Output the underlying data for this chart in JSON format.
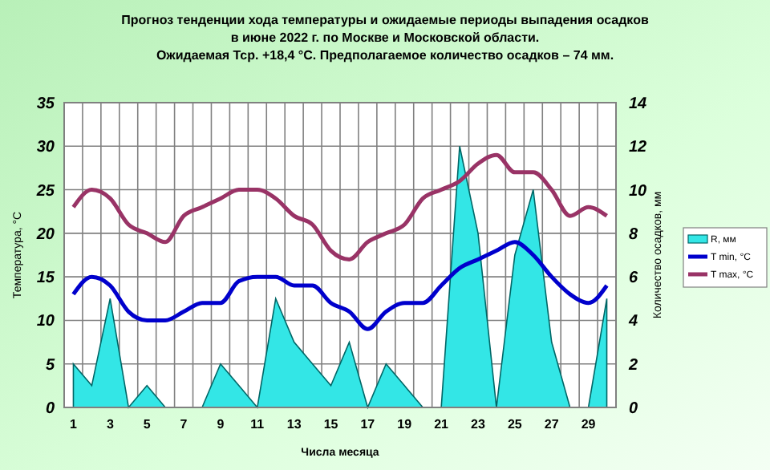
{
  "chart_data": {
    "type": "line",
    "title": "Прогноз тенденции хода температуры и ожидаемые периоды выпадения осадков",
    "subtitle": "в июне 2022 г. по Москве и Московской области.\nОжидаемая Тср. +18,4 °С. Предполагаемое количество осадков – 74 мм.",
    "xlabel": "Числа месяца",
    "ylabel": "Температура, °С",
    "y2label": "Количество осадков, мм",
    "x": [
      1,
      2,
      3,
      4,
      5,
      6,
      7,
      8,
      9,
      10,
      11,
      12,
      13,
      14,
      15,
      16,
      17,
      18,
      19,
      20,
      21,
      22,
      23,
      24,
      25,
      26,
      27,
      28,
      29,
      30
    ],
    "xlim": [
      0.5,
      30.5
    ],
    "xticks": [
      1,
      {
        "value": 1.5,
        "label": null
      },
      {
        "value": 2.5,
        "label": null
      },
      3,
      {
        "value": 3.5,
        "label": null
      },
      {
        "value": 4.5,
        "label": null
      },
      5,
      {
        "value": 5.5,
        "label": null
      },
      {
        "value": 6.5,
        "label": null
      },
      7,
      {
        "value": 7.5,
        "label": null
      },
      {
        "value": 8.5,
        "label": null
      },
      9,
      {
        "value": 9.5,
        "label": null
      },
      {
        "value": 10.5,
        "label": null
      },
      11,
      {
        "value": 11.5,
        "label": null
      },
      {
        "value": 12.5,
        "label": null
      },
      13,
      {
        "value": 13.5,
        "label": null
      },
      {
        "value": 14.5,
        "label": null
      },
      15,
      {
        "value": 15.5,
        "label": null
      },
      {
        "value": 16.5,
        "label": null
      },
      17,
      {
        "value": 17.5,
        "label": null
      },
      {
        "value": 18.5,
        "label": null
      },
      19,
      {
        "value": 19.5,
        "label": null
      },
      {
        "value": 20.5,
        "label": null
      },
      21,
      {
        "value": 21.5,
        "label": null
      },
      {
        "value": 22.5,
        "label": null
      },
      23,
      {
        "value": 23.5,
        "label": null
      },
      {
        "value": 24.5,
        "label": null
      },
      25,
      {
        "value": 25.5,
        "label": null
      },
      {
        "value": 26.5,
        "label": null
      },
      27,
      {
        "value": 27.5,
        "label": null
      },
      {
        "value": 28.5,
        "label": null
      },
      29,
      {
        "value": 29.5,
        "label": null
      }
    ],
    "series": [
      {
        "name": "R, мм",
        "type": "area",
        "axis": "y2",
        "color": "#33e6e6",
        "values": [
          2,
          1,
          5,
          0,
          1,
          0,
          0,
          0,
          2,
          1,
          0,
          5,
          3,
          2,
          1,
          3,
          0,
          2,
          1,
          0,
          0,
          12,
          8,
          0,
          7,
          10,
          3,
          0,
          0,
          5
        ]
      },
      {
        "name": "T min, °C",
        "color": "#0000cc",
        "values": [
          13,
          15,
          14,
          11,
          10,
          10,
          11,
          12,
          12,
          14.5,
          15,
          15,
          14,
          14,
          12,
          11,
          9,
          11,
          12,
          12,
          14,
          16,
          17,
          18,
          19,
          17.5,
          15,
          13,
          12,
          14
        ]
      },
      {
        "name": "T max, °C",
        "color": "#993366",
        "values": [
          23,
          25,
          24,
          21,
          20,
          19,
          22,
          23,
          24,
          25,
          25,
          24,
          22,
          21,
          18,
          17,
          19,
          20,
          21,
          24,
          25,
          26,
          28,
          29,
          27,
          27,
          25,
          22,
          23,
          22
        ]
      }
    ],
    "ylim": [
      0,
      35
    ],
    "yticks": [
      0,
      5,
      10,
      15,
      20,
      25,
      30,
      35
    ],
    "y2lim": [
      0,
      14
    ],
    "y2ticks": [
      0,
      2,
      4,
      6,
      8,
      10,
      12,
      14
    ],
    "grid": true,
    "legend": "right",
    "marker": "none"
  }
}
